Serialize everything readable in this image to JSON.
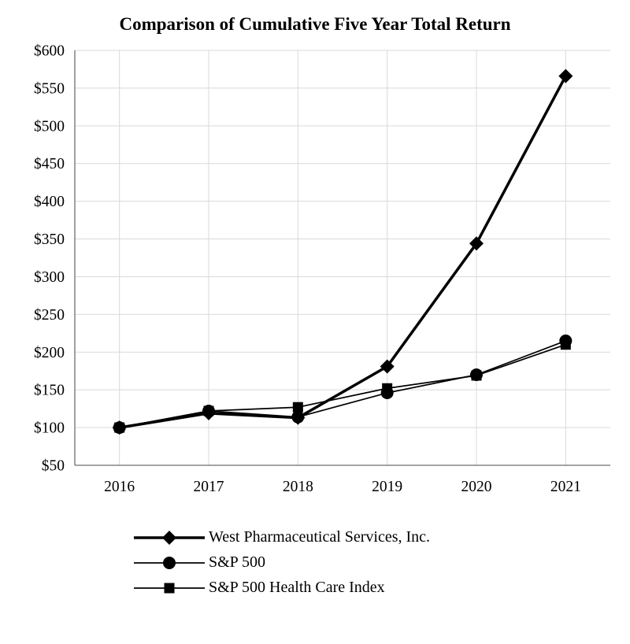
{
  "chart_data": {
    "type": "line",
    "title": "Comparison of Cumulative Five Year Total Return",
    "categories": [
      "2016",
      "2017",
      "2018",
      "2019",
      "2020",
      "2021"
    ],
    "series": [
      {
        "name": "West Pharmaceutical Services, Inc.",
        "marker": "diamond",
        "line_width": 3.5,
        "values": [
          100,
          119,
          113,
          181,
          344,
          566
        ]
      },
      {
        "name": "S&P 500",
        "marker": "circle",
        "line_width": 1.7,
        "values": [
          100,
          122,
          114,
          146,
          170,
          215
        ]
      },
      {
        "name": "S&P 500 Health Care Index",
        "marker": "square",
        "line_width": 1.7,
        "values": [
          100,
          122,
          127,
          152,
          169,
          210
        ]
      }
    ],
    "xlabel": "",
    "ylabel": "",
    "ylim": [
      50,
      600
    ],
    "y_ticks": [
      50,
      100,
      150,
      200,
      250,
      300,
      350,
      400,
      450,
      500,
      550,
      600
    ],
    "y_tick_prefix": "$",
    "grid": true,
    "legend_position": "bottom",
    "series_color": "#000000",
    "grid_color": "#d9d9d9",
    "axis_color": "#6e6e6e"
  }
}
